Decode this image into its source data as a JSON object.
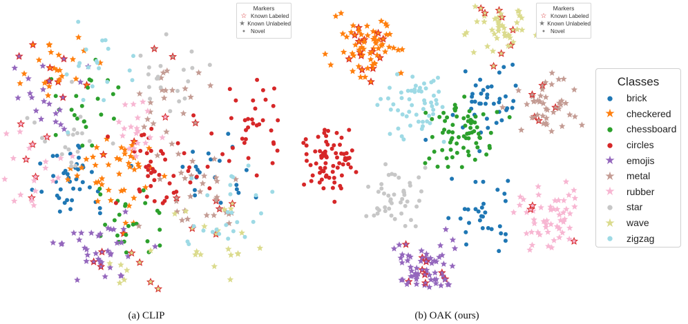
{
  "captions": {
    "left": "(a) CLIP",
    "right": "(b) OAK (ours)"
  },
  "marker_legend": {
    "title": "Markers",
    "items": [
      {
        "label": "Known Labeled",
        "symbol": "★",
        "color": "#d62728"
      },
      {
        "label": "Known Unlabeled",
        "symbol": "★",
        "color": "#7f7f7f"
      },
      {
        "label": "Novel",
        "symbol": "●",
        "color": "#7f7f7f"
      }
    ]
  },
  "class_legend": {
    "title": "Classes",
    "items": [
      {
        "label": "brick",
        "color": "#1f77b4",
        "symbol": "●"
      },
      {
        "label": "checkered",
        "color": "#ff7f0e",
        "symbol": "★"
      },
      {
        "label": "chessboard",
        "color": "#2ca02c",
        "symbol": "●"
      },
      {
        "label": "circles",
        "color": "#d62728",
        "symbol": "●"
      },
      {
        "label": "emojis",
        "color": "#9467bd",
        "symbol": "★"
      },
      {
        "label": "metal",
        "color": "#c49c94",
        "symbol": "★"
      },
      {
        "label": "rubber",
        "color": "#f7b6d2",
        "symbol": "★"
      },
      {
        "label": "star",
        "color": "#c7c7c7",
        "symbol": "●"
      },
      {
        "label": "wave",
        "color": "#dbdb8d",
        "symbol": "★"
      },
      {
        "label": "zigzag",
        "color": "#9edae5",
        "symbol": "●"
      }
    ]
  },
  "chart_data": [
    {
      "type": "scatter",
      "title": "(a) CLIP",
      "description_of_structure": "t-SNE embedding; classes heavily intermixed",
      "series": [
        {
          "name": "brick",
          "marker": "circle",
          "clusters": [
            [
              0.25,
              0.6,
              40
            ],
            [
              0.78,
              0.55,
              20
            ]
          ]
        },
        {
          "name": "checkered",
          "marker": "star",
          "clusters": [
            [
              0.4,
              0.57,
              45
            ],
            [
              0.2,
              0.2,
              25
            ]
          ]
        },
        {
          "name": "chessboard",
          "marker": "circle",
          "clusters": [
            [
              0.45,
              0.75,
              25
            ],
            [
              0.3,
              0.35,
              25
            ]
          ]
        },
        {
          "name": "circles",
          "marker": "circle",
          "clusters": [
            [
              0.55,
              0.55,
              45
            ],
            [
              0.88,
              0.4,
              35
            ]
          ]
        },
        {
          "name": "emojis",
          "marker": "star",
          "clusters": [
            [
              0.35,
              0.85,
              40
            ],
            [
              0.15,
              0.3,
              25
            ]
          ]
        },
        {
          "name": "metal",
          "marker": "star",
          "clusters": [
            [
              0.7,
              0.65,
              30
            ],
            [
              0.6,
              0.3,
              25
            ]
          ]
        },
        {
          "name": "rubber",
          "marker": "star",
          "clusters": [
            [
              0.1,
              0.55,
              25
            ],
            [
              0.5,
              0.4,
              20
            ]
          ]
        },
        {
          "name": "star",
          "marker": "circle",
          "clusters": [
            [
              0.6,
              0.2,
              20
            ],
            [
              0.25,
              0.45,
              20
            ]
          ]
        },
        {
          "name": "wave",
          "marker": "star",
          "clusters": [
            [
              0.45,
              0.95,
              15
            ],
            [
              0.75,
              0.8,
              20
            ]
          ]
        },
        {
          "name": "zigzag",
          "marker": "circle",
          "clusters": [
            [
              0.8,
              0.7,
              25
            ],
            [
              0.35,
              0.2,
              20
            ]
          ]
        }
      ]
    },
    {
      "type": "scatter",
      "title": "(b) OAK (ours)",
      "description_of_structure": "t-SNE embedding; classes form distinct clusters",
      "series": [
        {
          "name": "brick",
          "marker": "circle",
          "clusters": [
            [
              0.65,
              0.35,
              40
            ],
            [
              0.62,
              0.72,
              30
            ]
          ]
        },
        {
          "name": "checkered",
          "marker": "star",
          "clusters": [
            [
              0.25,
              0.15,
              70
            ]
          ]
        },
        {
          "name": "chessboard",
          "marker": "circle",
          "clusters": [
            [
              0.55,
              0.45,
              70
            ]
          ]
        },
        {
          "name": "circles",
          "marker": "circle",
          "clusters": [
            [
              0.12,
              0.55,
              75
            ]
          ]
        },
        {
          "name": "emojis",
          "marker": "star",
          "clusters": [
            [
              0.45,
              0.92,
              70
            ]
          ]
        },
        {
          "name": "metal",
          "marker": "star",
          "clusters": [
            [
              0.85,
              0.35,
              45
            ]
          ]
        },
        {
          "name": "rubber",
          "marker": "star",
          "clusters": [
            [
              0.85,
              0.75,
              55
            ]
          ]
        },
        {
          "name": "star",
          "marker": "circle",
          "clusters": [
            [
              0.35,
              0.68,
              45
            ]
          ]
        },
        {
          "name": "wave",
          "marker": "star",
          "clusters": [
            [
              0.7,
              0.08,
              50
            ]
          ]
        },
        {
          "name": "zigzag",
          "marker": "circle",
          "clusters": [
            [
              0.4,
              0.35,
              55
            ]
          ]
        }
      ]
    }
  ]
}
